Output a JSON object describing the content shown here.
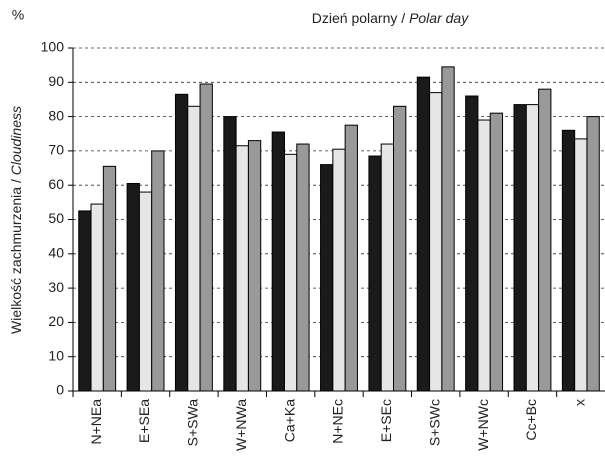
{
  "chart_data": {
    "type": "bar",
    "title": [
      "Dzień polarny / ",
      "Polar day"
    ],
    "ylabel": [
      "Wielkość zachmurzenia / ",
      "Cloudiness"
    ],
    "yunit": "%",
    "categories": [
      "N+NEa",
      "E+SEa",
      "S+SWa",
      "W+NWa",
      "Ca+Ka",
      "N+NEc",
      "E+SEc",
      "S+SWc",
      "W+NWc",
      "Cc+Bc",
      "x"
    ],
    "series": [
      {
        "color": "#1a1a1a",
        "values": [
          52.5,
          60.5,
          86.5,
          80,
          75.5,
          66,
          68.5,
          91.5,
          86,
          83.5,
          76
        ]
      },
      {
        "color": "#e6e6e6",
        "values": [
          54.5,
          58,
          83,
          71.5,
          69,
          70.5,
          72,
          87,
          79,
          83.5,
          73.5
        ]
      },
      {
        "color": "#999999",
        "values": [
          65.5,
          70,
          89.5,
          73,
          72,
          77.5,
          83,
          94.5,
          81,
          88,
          80
        ]
      }
    ],
    "ylim": [
      0,
      100
    ],
    "yticks": [
      0,
      10,
      20,
      30,
      40,
      50,
      60,
      70,
      80,
      90,
      100
    ],
    "grid": true
  }
}
